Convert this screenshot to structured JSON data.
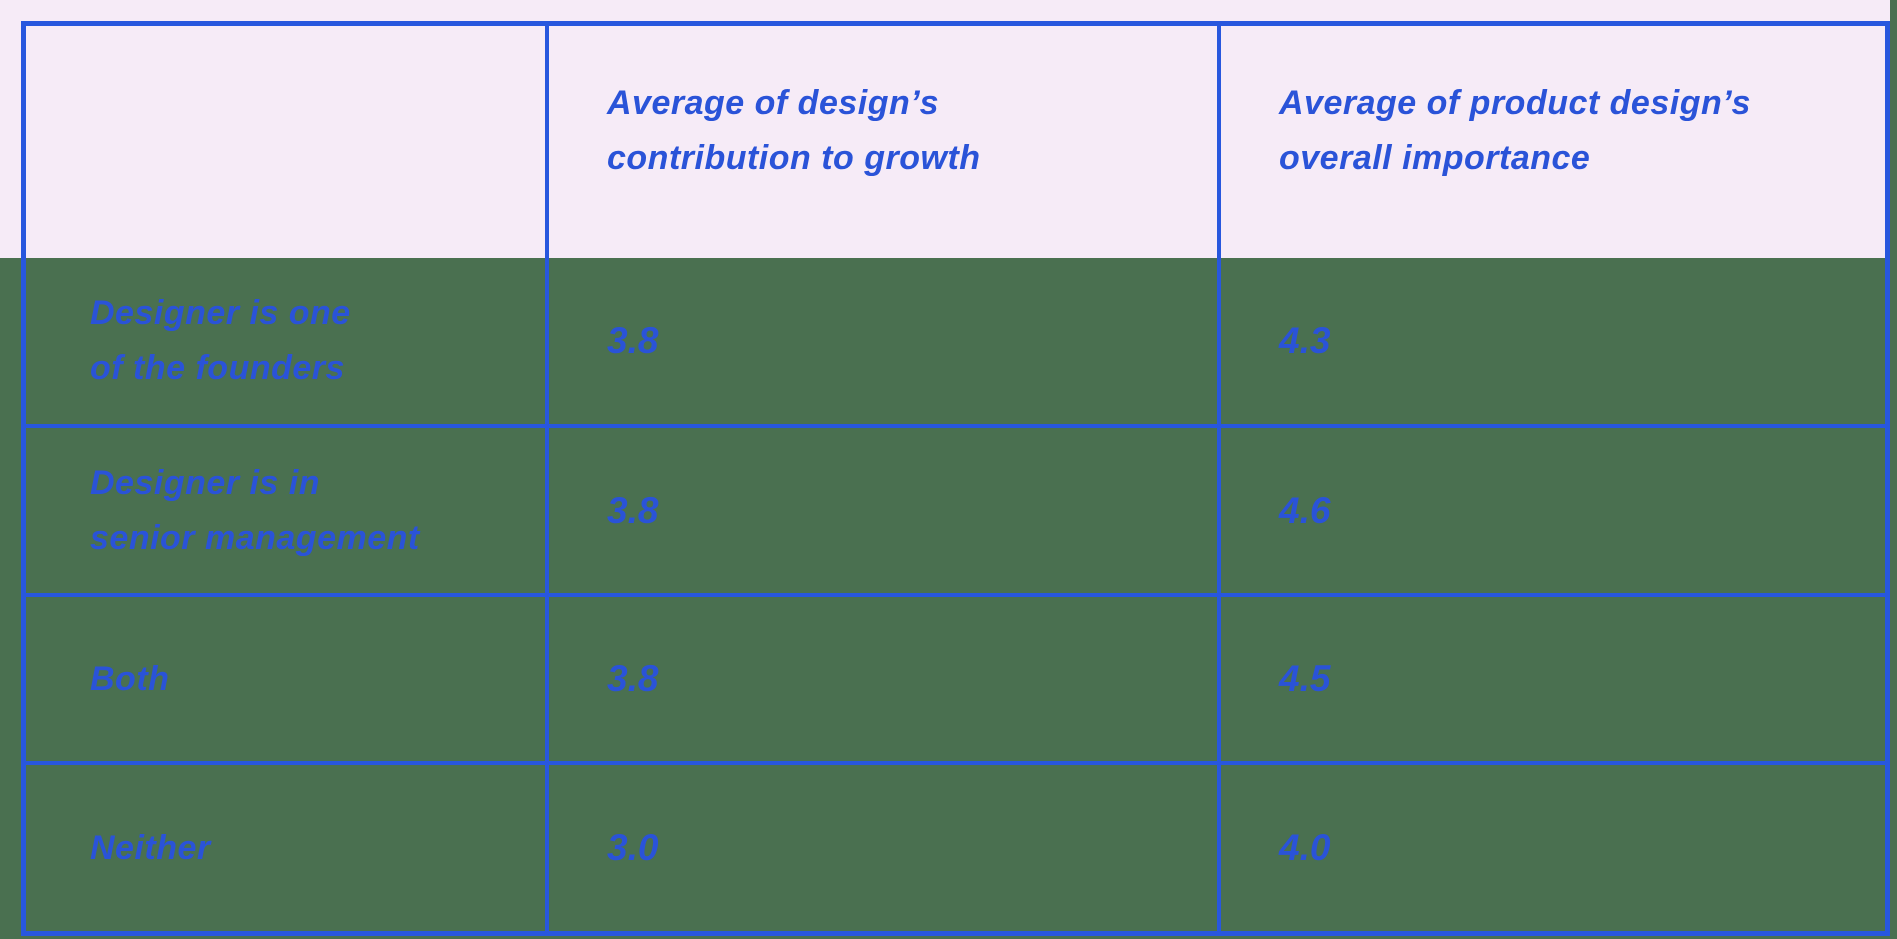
{
  "chart_data": {
    "type": "table",
    "title": "",
    "columns": [
      "",
      "Average of design’s contribution to growth",
      "Average of product design’s overall importance"
    ],
    "rows": [
      {
        "category": "Designer is one of the founders",
        "contribution_to_growth": 3.8,
        "overall_importance": 4.3
      },
      {
        "category": "Designer is in senior management",
        "contribution_to_growth": 3.8,
        "overall_importance": 4.6
      },
      {
        "category": "Both",
        "contribution_to_growth": 3.8,
        "overall_importance": 4.5
      },
      {
        "category": "Neither",
        "contribution_to_growth": 3.0,
        "overall_importance": 4.0
      }
    ]
  },
  "table": {
    "header": {
      "corner": "",
      "col2": [
        "Average of design’s",
        "contribution to growth"
      ],
      "col3": [
        "Average of product design’s",
        "overall importance"
      ]
    },
    "rows": [
      {
        "label": [
          "Designer is one",
          "of the founders"
        ],
        "contribution": "3.8",
        "importance": "4.3"
      },
      {
        "label": [
          "Designer is in",
          "senior management"
        ],
        "contribution": "3.8",
        "importance": "4.6"
      },
      {
        "label": [
          "Both"
        ],
        "contribution": "3.8",
        "importance": "4.5"
      },
      {
        "label": [
          "Neither"
        ],
        "contribution": "3.0",
        "importance": "4.0"
      }
    ]
  },
  "colors": {
    "background_green": "#4A7050",
    "header_band_pink": "#F6EBF7",
    "grid_blue": "#2857DE",
    "text_blue": "#2A53D8"
  }
}
